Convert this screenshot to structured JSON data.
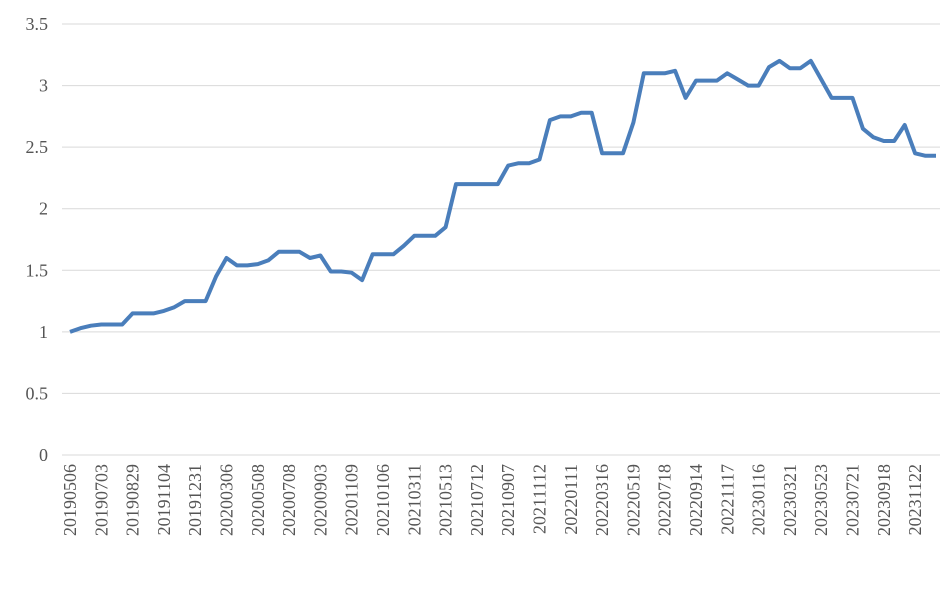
{
  "chart_data": {
    "type": "line",
    "color": "#4a7ebb",
    "grid": true,
    "ylim": [
      0,
      3.5
    ],
    "yticks": [
      0,
      0.5,
      1,
      1.5,
      2,
      2.5,
      3,
      3.5
    ],
    "categories": [
      "20190506",
      null,
      null,
      "20190703",
      null,
      null,
      "20190829",
      null,
      null,
      "20191104",
      null,
      null,
      "20191231",
      null,
      null,
      "20200306",
      null,
      null,
      "20200508",
      null,
      null,
      "20200708",
      null,
      null,
      "20200903",
      null,
      null,
      "20201109",
      null,
      null,
      "20210106",
      null,
      null,
      "20210311",
      null,
      null,
      "20210513",
      null,
      null,
      "20210712",
      null,
      null,
      "20210907",
      null,
      null,
      "20211112",
      null,
      null,
      "20220111",
      null,
      null,
      "20220316",
      null,
      null,
      "20220519",
      null,
      null,
      "20220718",
      null,
      null,
      "20220914",
      null,
      null,
      "20221117",
      null,
      null,
      "20230116",
      null,
      null,
      "20230321",
      null,
      null,
      "20230523",
      null,
      null,
      "20230721",
      null,
      null,
      "20230918",
      null,
      null,
      "20231122",
      null,
      null
    ],
    "values": [
      1.0,
      1.03,
      1.05,
      1.06,
      1.06,
      1.06,
      1.15,
      1.15,
      1.15,
      1.17,
      1.2,
      1.25,
      1.25,
      1.25,
      1.45,
      1.6,
      1.54,
      1.54,
      1.55,
      1.58,
      1.65,
      1.65,
      1.65,
      1.6,
      1.62,
      1.49,
      1.49,
      1.48,
      1.42,
      1.63,
      1.63,
      1.63,
      1.7,
      1.78,
      1.78,
      1.78,
      1.85,
      2.2,
      2.2,
      2.2,
      2.2,
      2.2,
      2.35,
      2.37,
      2.37,
      2.4,
      2.72,
      2.75,
      2.75,
      2.78,
      2.78,
      2.45,
      2.45,
      2.45,
      2.7,
      3.1,
      3.1,
      3.1,
      3.12,
      2.9,
      3.04,
      3.04,
      3.04,
      3.1,
      3.05,
      3.0,
      3.0,
      3.15,
      3.2,
      3.14,
      3.14,
      3.2,
      3.05,
      2.9,
      2.9,
      2.9,
      2.65,
      2.58,
      2.55,
      2.55,
      2.68,
      2.45,
      2.43,
      2.43
    ]
  }
}
